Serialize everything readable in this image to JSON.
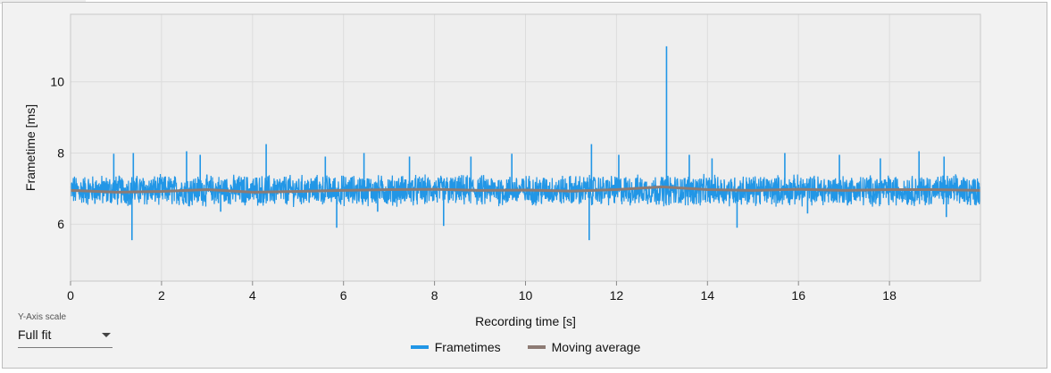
{
  "yscale": {
    "caption": "Y-Axis scale",
    "value": "Full fit"
  },
  "chart_data": {
    "type": "line",
    "xlabel": "Recording time [s]",
    "ylabel": "Frametime [ms]",
    "xlim": [
      0,
      20
    ],
    "ylim": [
      4.4,
      11.9
    ],
    "x_ticks": [
      0,
      2,
      4,
      6,
      8,
      10,
      12,
      14,
      16,
      18
    ],
    "y_ticks": [
      6,
      8,
      10
    ],
    "grid": true,
    "legend_position": "bottom-center",
    "series": [
      {
        "name": "Frametimes",
        "color": "#2196e6",
        "baseline": 6.95,
        "spikes": [
          {
            "x": 0.95,
            "y": 7.98
          },
          {
            "x": 1.35,
            "y": 5.55
          },
          {
            "x": 1.38,
            "y": 8.0
          },
          {
            "x": 2.55,
            "y": 8.05
          },
          {
            "x": 2.85,
            "y": 7.95
          },
          {
            "x": 3.3,
            "y": 6.35
          },
          {
            "x": 4.3,
            "y": 8.25
          },
          {
            "x": 5.6,
            "y": 7.9
          },
          {
            "x": 5.85,
            "y": 5.9
          },
          {
            "x": 6.45,
            "y": 8.0
          },
          {
            "x": 6.75,
            "y": 6.35
          },
          {
            "x": 7.45,
            "y": 7.9
          },
          {
            "x": 8.2,
            "y": 5.95
          },
          {
            "x": 8.8,
            "y": 7.9
          },
          {
            "x": 9.7,
            "y": 7.98
          },
          {
            "x": 11.4,
            "y": 5.55
          },
          {
            "x": 11.45,
            "y": 8.25
          },
          {
            "x": 12.05,
            "y": 7.95
          },
          {
            "x": 13.1,
            "y": 11.0
          },
          {
            "x": 13.6,
            "y": 7.95
          },
          {
            "x": 14.1,
            "y": 7.85
          },
          {
            "x": 14.65,
            "y": 5.9
          },
          {
            "x": 15.7,
            "y": 8.0
          },
          {
            "x": 16.2,
            "y": 6.3
          },
          {
            "x": 16.9,
            "y": 7.95
          },
          {
            "x": 17.8,
            "y": 7.85
          },
          {
            "x": 18.65,
            "y": 8.05
          },
          {
            "x": 19.2,
            "y": 7.9
          },
          {
            "x": 19.25,
            "y": 6.2
          }
        ]
      },
      {
        "name": "Moving average",
        "color": "#8d7b74",
        "x": [
          0,
          1,
          2,
          3,
          4,
          5,
          6,
          7,
          8,
          9,
          10,
          11,
          12,
          13,
          14,
          15,
          16,
          17,
          18,
          19,
          20
        ],
        "y": [
          6.95,
          6.9,
          6.92,
          6.97,
          6.9,
          6.92,
          6.95,
          6.97,
          6.98,
          6.95,
          6.96,
          6.93,
          6.97,
          7.05,
          6.97,
          6.95,
          6.98,
          6.95,
          6.97,
          6.97,
          6.95
        ]
      }
    ]
  }
}
